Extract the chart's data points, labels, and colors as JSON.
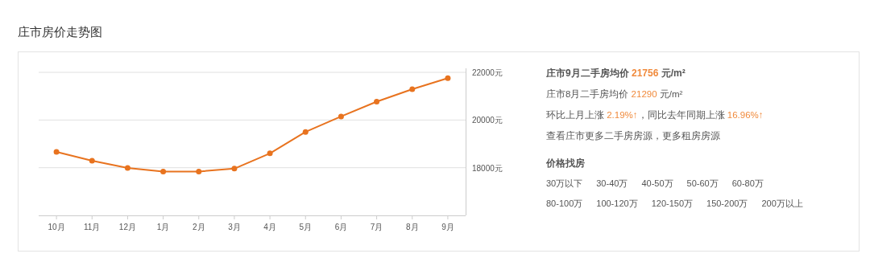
{
  "chart_data": {
    "type": "line",
    "title": "庄市房价走势图",
    "categories": [
      "10月",
      "11月",
      "12月",
      "1月",
      "2月",
      "3月",
      "4月",
      "5月",
      "6月",
      "7月",
      "8月",
      "9月"
    ],
    "series": [
      {
        "color": "#e8731f",
        "values": [
          18660,
          18290,
          17990,
          17840,
          17840,
          17960,
          18600,
          19500,
          20150,
          20770,
          21290,
          21756
        ]
      }
    ],
    "ylim": [
      16000,
      22000
    ],
    "yticks": [
      {
        "value": 18000,
        "label": "18000元"
      },
      {
        "value": 20000,
        "label": "20000元"
      },
      {
        "value": 22000,
        "label": "22000元"
      }
    ],
    "grid": "y",
    "marker": "circle",
    "line_style": "solid",
    "annotations": [
      "庄市9月二手房均价 21756 元/m²",
      "庄市8月二手房均价 21290 元/m²",
      "环比上月上涨 2.19%↑，同比去年同期上涨 16.96%↑",
      "查看庄市更多二手房房源，更多租房房源",
      "价格找房",
      "30万以下",
      "30-40万",
      "40-50万",
      "50-60万",
      "60-80万",
      "80-100万",
      "100-120万",
      "120-150万",
      "150-200万",
      "200万以上"
    ]
  }
}
